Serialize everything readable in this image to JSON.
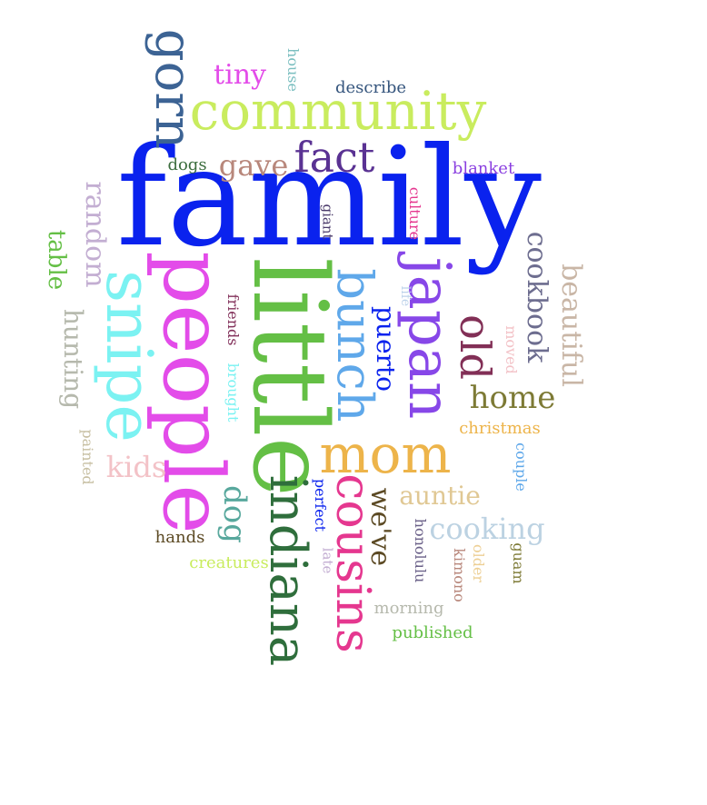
{
  "cloud": {
    "words": [
      {
        "key": "family",
        "text": "family",
        "color": "#0a22ee",
        "vertical": false
      },
      {
        "key": "little",
        "text": "little",
        "color": "#64bf45",
        "vertical": true
      },
      {
        "key": "people",
        "text": "people",
        "color": "#e34ce9",
        "vertical": true
      },
      {
        "key": "snipe",
        "text": "snipe",
        "color": "#7bf2f2",
        "vertical": true
      },
      {
        "key": "japan",
        "text": "japan",
        "color": "#8747e8",
        "vertical": true
      },
      {
        "key": "bunch",
        "text": "bunch",
        "color": "#5fa8ea",
        "vertical": true
      },
      {
        "key": "indiana",
        "text": "indiana",
        "color": "#2f6e3c",
        "vertical": true
      },
      {
        "key": "cousins",
        "text": "cousins",
        "color": "#e5378f",
        "vertical": true
      },
      {
        "key": "community",
        "text": "community",
        "color": "#c9ec5e",
        "vertical": false
      },
      {
        "key": "mom",
        "text": "mom",
        "color": "#edb44a",
        "vertical": false
      },
      {
        "key": "gorn",
        "text": "gorn",
        "color": "#3c6394",
        "vertical": true
      },
      {
        "key": "fact",
        "text": "fact",
        "color": "#5a3293",
        "vertical": false
      },
      {
        "key": "old",
        "text": "old",
        "color": "#822f56",
        "vertical": true
      },
      {
        "key": "tiny",
        "text": "tiny",
        "color": "#e34ce9",
        "vertical": false
      },
      {
        "key": "gave",
        "text": "gave",
        "color": "#b8877b",
        "vertical": false
      },
      {
        "key": "dogs",
        "text": "dogs",
        "color": "#3d6e3f",
        "vertical": false
      },
      {
        "key": "describe",
        "text": "describe",
        "color": "#35557d",
        "vertical": false
      },
      {
        "key": "house",
        "text": "house",
        "color": "#7bbfc0",
        "vertical": true
      },
      {
        "key": "blanket",
        "text": "blanket",
        "color": "#8a3fe0",
        "vertical": false
      },
      {
        "key": "random",
        "text": "random",
        "color": "#c3aed2",
        "vertical": true
      },
      {
        "key": "table",
        "text": "table",
        "color": "#64bf45",
        "vertical": true
      },
      {
        "key": "hunting",
        "text": "hunting",
        "color": "#b6b9ad",
        "vertical": true
      },
      {
        "key": "painted",
        "text": "painted",
        "color": "#c7bfa2",
        "vertical": true
      },
      {
        "key": "kids",
        "text": "kids",
        "color": "#f3c2c7",
        "vertical": false
      },
      {
        "key": "dog",
        "text": "dog",
        "color": "#58a89d",
        "vertical": true
      },
      {
        "key": "hands",
        "text": "hands",
        "color": "#5c4a24",
        "vertical": false
      },
      {
        "key": "creatures",
        "text": "creatures",
        "color": "#c9ec5e",
        "vertical": false
      },
      {
        "key": "giant",
        "text": "giant",
        "color": "#4a3a6a",
        "vertical": true
      },
      {
        "key": "culture",
        "text": "culture",
        "color": "#e5378f",
        "vertical": true
      },
      {
        "key": "friends",
        "text": "friends",
        "color": "#82305a",
        "vertical": true
      },
      {
        "key": "brought",
        "text": "brought",
        "color": "#7bf2f2",
        "vertical": true
      },
      {
        "key": "life",
        "text": "life",
        "color": "#bcd2ea",
        "vertical": true
      },
      {
        "key": "puerto",
        "text": "puerto",
        "color": "#0a22ee",
        "vertical": true
      },
      {
        "key": "cookbook",
        "text": "cookbook",
        "color": "#6d6d8f",
        "vertical": true
      },
      {
        "key": "beautiful",
        "text": "beautiful",
        "color": "#c9b6a6",
        "vertical": true
      },
      {
        "key": "moved",
        "text": "moved",
        "color": "#f3c2c7",
        "vertical": true
      },
      {
        "key": "home",
        "text": "home",
        "color": "#7d7a35",
        "vertical": false
      },
      {
        "key": "christmas",
        "text": "christmas",
        "color": "#edb44a",
        "vertical": false
      },
      {
        "key": "couple",
        "text": "couple",
        "color": "#5fa8ea",
        "vertical": true
      },
      {
        "key": "weve",
        "text": "we've",
        "color": "#5c4a24",
        "vertical": true
      },
      {
        "key": "auntie",
        "text": "auntie",
        "color": "#e0c894",
        "vertical": false
      },
      {
        "key": "cooking",
        "text": "cooking",
        "color": "#bcd2e2",
        "vertical": false
      },
      {
        "key": "perfect",
        "text": "perfect",
        "color": "#0a22ee",
        "vertical": true
      },
      {
        "key": "honolulu",
        "text": "honolulu",
        "color": "#6a6088",
        "vertical": true
      },
      {
        "key": "late",
        "text": "late",
        "color": "#c3aed2",
        "vertical": true
      },
      {
        "key": "kimono",
        "text": "kimono",
        "color": "#b8877b",
        "vertical": true
      },
      {
        "key": "older",
        "text": "older",
        "color": "#edcf94",
        "vertical": true
      },
      {
        "key": "guam",
        "text": "guam",
        "color": "#7d7a35",
        "vertical": true
      },
      {
        "key": "morning",
        "text": "morning",
        "color": "#b6b9ad",
        "vertical": false
      },
      {
        "key": "published",
        "text": "published",
        "color": "#64bf45",
        "vertical": false
      }
    ]
  }
}
